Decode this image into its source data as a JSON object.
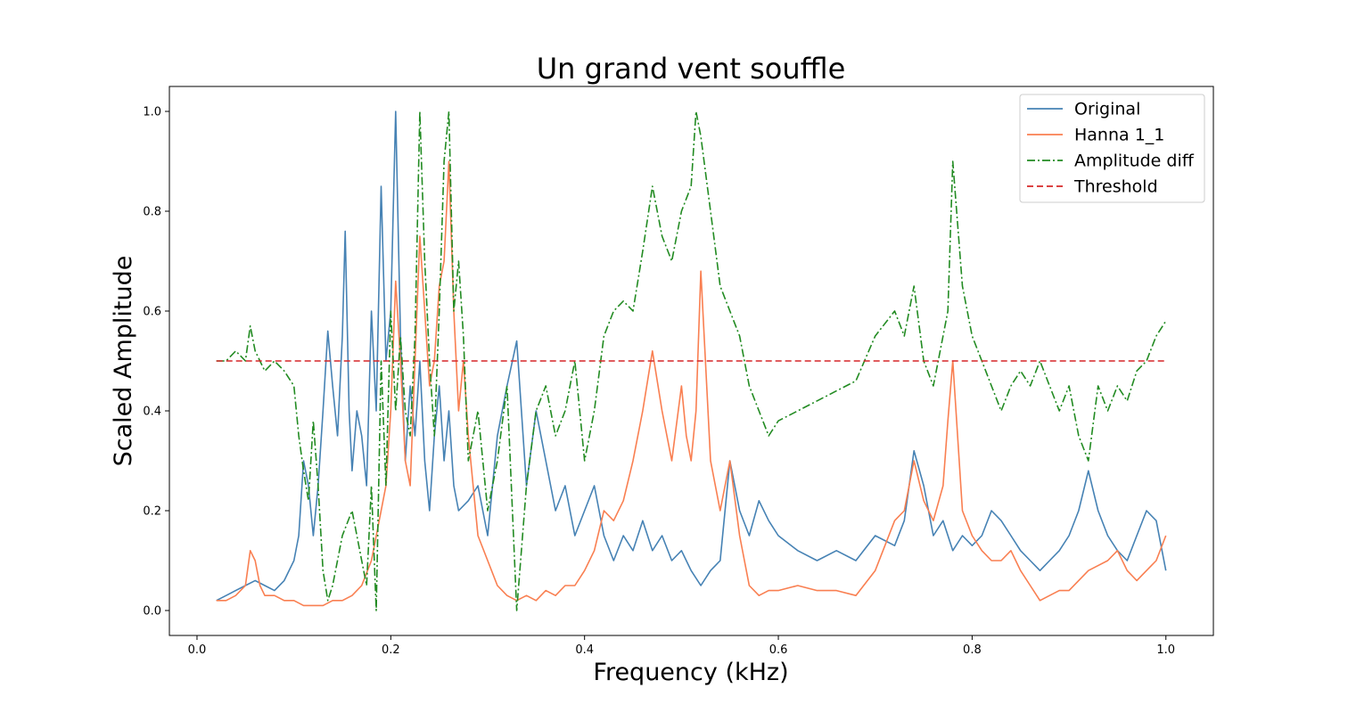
{
  "chart_data": {
    "type": "line",
    "title": "Un grand vent souffle",
    "xlabel": "Frequency (kHz)",
    "ylabel": "Scaled Amplitude",
    "xlim": [
      -0.0285,
      1.049
    ],
    "ylim": [
      -0.05,
      1.05
    ],
    "xticks": [
      0.0,
      0.2,
      0.4,
      0.6,
      0.8,
      1.0
    ],
    "xtick_labels": [
      "0.0",
      "0.2",
      "0.4",
      "0.6",
      "0.8",
      "1.0"
    ],
    "yticks": [
      0.0,
      0.2,
      0.4,
      0.6,
      0.8,
      1.0
    ],
    "ytick_labels": [
      "0.0",
      "0.2",
      "0.4",
      "0.6",
      "0.8",
      "1.0"
    ],
    "grid": false,
    "legend_position": "top-right",
    "series": [
      {
        "name": "Original",
        "color": "#4682b4",
        "dash": "solid",
        "x": [
          0.02,
          0.03,
          0.04,
          0.05,
          0.06,
          0.07,
          0.08,
          0.09,
          0.1,
          0.105,
          0.11,
          0.115,
          0.12,
          0.125,
          0.13,
          0.135,
          0.14,
          0.145,
          0.15,
          0.153,
          0.157,
          0.16,
          0.165,
          0.17,
          0.175,
          0.18,
          0.185,
          0.19,
          0.195,
          0.2,
          0.205,
          0.21,
          0.215,
          0.22,
          0.225,
          0.23,
          0.235,
          0.24,
          0.245,
          0.25,
          0.255,
          0.26,
          0.265,
          0.27,
          0.28,
          0.29,
          0.3,
          0.31,
          0.32,
          0.33,
          0.34,
          0.35,
          0.36,
          0.37,
          0.38,
          0.39,
          0.4,
          0.41,
          0.42,
          0.43,
          0.44,
          0.45,
          0.46,
          0.47,
          0.48,
          0.49,
          0.5,
          0.51,
          0.52,
          0.53,
          0.54,
          0.55,
          0.56,
          0.57,
          0.58,
          0.59,
          0.6,
          0.62,
          0.64,
          0.66,
          0.68,
          0.7,
          0.72,
          0.73,
          0.74,
          0.75,
          0.76,
          0.77,
          0.78,
          0.79,
          0.8,
          0.81,
          0.82,
          0.83,
          0.84,
          0.85,
          0.86,
          0.87,
          0.88,
          0.89,
          0.9,
          0.91,
          0.92,
          0.93,
          0.94,
          0.95,
          0.96,
          0.97,
          0.98,
          0.99,
          1.0
        ],
        "y": [
          0.02,
          0.03,
          0.04,
          0.05,
          0.06,
          0.05,
          0.04,
          0.06,
          0.1,
          0.15,
          0.3,
          0.25,
          0.15,
          0.25,
          0.4,
          0.56,
          0.45,
          0.35,
          0.55,
          0.76,
          0.4,
          0.28,
          0.4,
          0.35,
          0.25,
          0.6,
          0.4,
          0.85,
          0.5,
          0.6,
          1.0,
          0.55,
          0.3,
          0.45,
          0.35,
          0.5,
          0.3,
          0.2,
          0.35,
          0.45,
          0.3,
          0.4,
          0.25,
          0.2,
          0.22,
          0.25,
          0.15,
          0.35,
          0.45,
          0.54,
          0.25,
          0.4,
          0.3,
          0.2,
          0.25,
          0.15,
          0.2,
          0.25,
          0.15,
          0.1,
          0.15,
          0.12,
          0.18,
          0.12,
          0.15,
          0.1,
          0.12,
          0.08,
          0.05,
          0.08,
          0.1,
          0.3,
          0.2,
          0.15,
          0.22,
          0.18,
          0.15,
          0.12,
          0.1,
          0.12,
          0.1,
          0.15,
          0.13,
          0.18,
          0.32,
          0.25,
          0.15,
          0.18,
          0.12,
          0.15,
          0.13,
          0.15,
          0.2,
          0.18,
          0.15,
          0.12,
          0.1,
          0.08,
          0.1,
          0.12,
          0.15,
          0.2,
          0.28,
          0.2,
          0.15,
          0.12,
          0.1,
          0.15,
          0.2,
          0.18,
          0.08
        ]
      },
      {
        "name": "Hanna 1_1",
        "color": "#f97f51",
        "dash": "solid",
        "x": [
          0.02,
          0.03,
          0.04,
          0.05,
          0.055,
          0.06,
          0.065,
          0.07,
          0.08,
          0.09,
          0.1,
          0.11,
          0.12,
          0.13,
          0.14,
          0.15,
          0.16,
          0.17,
          0.18,
          0.19,
          0.195,
          0.2,
          0.205,
          0.21,
          0.215,
          0.22,
          0.225,
          0.23,
          0.235,
          0.24,
          0.245,
          0.25,
          0.255,
          0.26,
          0.265,
          0.27,
          0.275,
          0.28,
          0.29,
          0.3,
          0.31,
          0.32,
          0.33,
          0.34,
          0.35,
          0.36,
          0.37,
          0.38,
          0.39,
          0.4,
          0.41,
          0.42,
          0.43,
          0.44,
          0.45,
          0.46,
          0.47,
          0.48,
          0.49,
          0.5,
          0.505,
          0.51,
          0.515,
          0.52,
          0.53,
          0.54,
          0.55,
          0.56,
          0.57,
          0.58,
          0.59,
          0.6,
          0.62,
          0.64,
          0.66,
          0.68,
          0.7,
          0.72,
          0.73,
          0.74,
          0.75,
          0.76,
          0.77,
          0.775,
          0.78,
          0.79,
          0.8,
          0.81,
          0.82,
          0.83,
          0.84,
          0.85,
          0.86,
          0.87,
          0.88,
          0.89,
          0.9,
          0.91,
          0.92,
          0.93,
          0.94,
          0.95,
          0.96,
          0.97,
          0.98,
          0.99,
          1.0
        ],
        "y": [
          0.02,
          0.02,
          0.03,
          0.05,
          0.12,
          0.1,
          0.05,
          0.03,
          0.03,
          0.02,
          0.02,
          0.01,
          0.01,
          0.01,
          0.02,
          0.02,
          0.03,
          0.05,
          0.1,
          0.2,
          0.25,
          0.4,
          0.66,
          0.5,
          0.3,
          0.25,
          0.5,
          0.75,
          0.6,
          0.45,
          0.5,
          0.65,
          0.7,
          0.9,
          0.6,
          0.4,
          0.5,
          0.35,
          0.15,
          0.1,
          0.05,
          0.03,
          0.02,
          0.03,
          0.02,
          0.04,
          0.03,
          0.05,
          0.05,
          0.08,
          0.12,
          0.2,
          0.18,
          0.22,
          0.3,
          0.4,
          0.52,
          0.4,
          0.3,
          0.45,
          0.35,
          0.3,
          0.4,
          0.68,
          0.3,
          0.2,
          0.3,
          0.15,
          0.05,
          0.03,
          0.04,
          0.04,
          0.05,
          0.04,
          0.04,
          0.03,
          0.08,
          0.18,
          0.2,
          0.3,
          0.22,
          0.18,
          0.25,
          0.38,
          0.5,
          0.2,
          0.15,
          0.12,
          0.1,
          0.1,
          0.12,
          0.08,
          0.05,
          0.02,
          0.03,
          0.04,
          0.04,
          0.06,
          0.08,
          0.09,
          0.1,
          0.12,
          0.08,
          0.06,
          0.08,
          0.1,
          0.15
        ]
      },
      {
        "name": "Amplitude diff",
        "color": "#228b22",
        "dash": "dashdot",
        "x": [
          0.02,
          0.03,
          0.04,
          0.05,
          0.055,
          0.06,
          0.07,
          0.08,
          0.09,
          0.1,
          0.105,
          0.11,
          0.115,
          0.12,
          0.125,
          0.13,
          0.135,
          0.14,
          0.15,
          0.16,
          0.17,
          0.175,
          0.18,
          0.185,
          0.19,
          0.195,
          0.2,
          0.205,
          0.21,
          0.215,
          0.22,
          0.225,
          0.23,
          0.235,
          0.24,
          0.245,
          0.25,
          0.255,
          0.26,
          0.265,
          0.27,
          0.275,
          0.28,
          0.29,
          0.3,
          0.31,
          0.32,
          0.33,
          0.34,
          0.35,
          0.36,
          0.37,
          0.38,
          0.39,
          0.4,
          0.41,
          0.42,
          0.43,
          0.44,
          0.45,
          0.46,
          0.47,
          0.48,
          0.49,
          0.5,
          0.51,
          0.515,
          0.52,
          0.53,
          0.54,
          0.55,
          0.56,
          0.57,
          0.58,
          0.59,
          0.6,
          0.62,
          0.64,
          0.66,
          0.68,
          0.7,
          0.72,
          0.73,
          0.74,
          0.75,
          0.76,
          0.77,
          0.775,
          0.78,
          0.79,
          0.8,
          0.81,
          0.82,
          0.83,
          0.84,
          0.85,
          0.86,
          0.87,
          0.88,
          0.89,
          0.9,
          0.91,
          0.92,
          0.93,
          0.94,
          0.95,
          0.96,
          0.97,
          0.98,
          0.99,
          1.0
        ],
        "y": [
          0.5,
          0.5,
          0.52,
          0.5,
          0.57,
          0.52,
          0.48,
          0.5,
          0.48,
          0.45,
          0.35,
          0.28,
          0.22,
          0.38,
          0.25,
          0.08,
          0.02,
          0.05,
          0.15,
          0.2,
          0.1,
          0.05,
          0.25,
          0.0,
          0.5,
          0.25,
          0.6,
          0.4,
          0.55,
          0.4,
          0.35,
          0.55,
          1.0,
          0.7,
          0.5,
          0.35,
          0.6,
          0.9,
          1.0,
          0.6,
          0.7,
          0.55,
          0.3,
          0.4,
          0.2,
          0.3,
          0.45,
          0.0,
          0.25,
          0.4,
          0.45,
          0.35,
          0.4,
          0.5,
          0.3,
          0.4,
          0.55,
          0.6,
          0.62,
          0.6,
          0.72,
          0.85,
          0.75,
          0.7,
          0.8,
          0.85,
          1.0,
          0.95,
          0.8,
          0.65,
          0.6,
          0.55,
          0.45,
          0.4,
          0.35,
          0.38,
          0.4,
          0.42,
          0.44,
          0.46,
          0.55,
          0.6,
          0.55,
          0.65,
          0.5,
          0.45,
          0.55,
          0.6,
          0.9,
          0.65,
          0.55,
          0.5,
          0.45,
          0.4,
          0.45,
          0.48,
          0.45,
          0.5,
          0.45,
          0.4,
          0.45,
          0.35,
          0.3,
          0.45,
          0.4,
          0.45,
          0.42,
          0.48,
          0.5,
          0.55,
          0.58
        ]
      },
      {
        "name": "Threshold",
        "color": "#d62728",
        "dash": "dashed",
        "x": [
          0.02,
          1.0
        ],
        "y": [
          0.5,
          0.5
        ]
      }
    ]
  }
}
